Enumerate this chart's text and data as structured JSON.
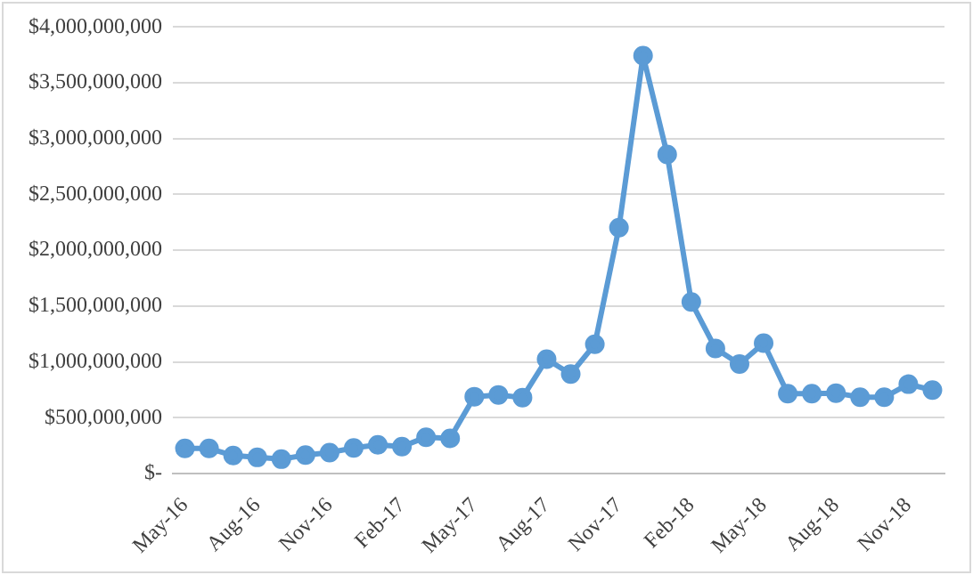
{
  "chart_data": {
    "type": "line",
    "categories": [
      "May-16",
      null,
      null,
      "Aug-16",
      null,
      null,
      "Nov-16",
      null,
      null,
      "Feb-17",
      null,
      null,
      "May-17",
      null,
      null,
      "Aug-17",
      null,
      null,
      "Nov-17",
      null,
      null,
      "Feb-18",
      null,
      null,
      "May-18",
      null,
      null,
      "Aug-18",
      null,
      null,
      "Nov-18",
      null
    ],
    "series": [
      {
        "color": "#5b9bd5",
        "values": [
          224000000,
          224000000,
          160000000,
          144000000,
          128000000,
          165000000,
          187000000,
          229000000,
          256000000,
          240000000,
          325000000,
          315000000,
          688000000,
          704000000,
          680000000,
          1024000000,
          891000000,
          1157000000,
          2203000000,
          3744000000,
          2859000000,
          1536000000,
          1120000000,
          981000000,
          1168000000,
          715000000,
          715000000,
          720000000,
          683000000,
          683000000,
          800000000,
          747000000
        ]
      }
    ],
    "ylim": [
      0,
      4000000000
    ],
    "yticks": [
      {
        "value": 0,
        "label": "$-"
      },
      {
        "value": 500000000,
        "label": "$500,000,000"
      },
      {
        "value": 1000000000,
        "label": "$1,000,000,000"
      },
      {
        "value": 1500000000,
        "label": "$1,500,000,000"
      },
      {
        "value": 2000000000,
        "label": "$2,000,000,000"
      },
      {
        "value": 2500000000,
        "label": "$2,500,000,000"
      },
      {
        "value": 3000000000,
        "label": "$3,000,000,000"
      },
      {
        "value": 3500000000,
        "label": "$3,500,000,000"
      },
      {
        "value": 4000000000,
        "label": "$4,000,000,000"
      }
    ],
    "grid": "y",
    "legend": false,
    "marker": "circle",
    "line_style": "solid"
  }
}
